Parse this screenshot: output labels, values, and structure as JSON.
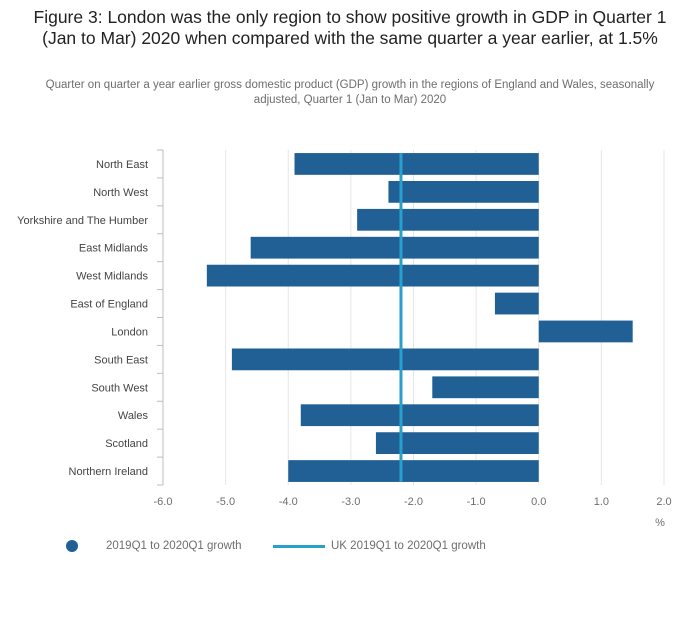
{
  "title": "Figure 3: London was the only region to show positive growth in GDP in Quarter 1 (Jan to Mar) 2020 when compared with the same quarter a year earlier, at 1.5%",
  "subtitle": "Quarter on quarter a year earlier gross domestic product (GDP) growth in the regions of England and Wales, seasonally adjusted, Quarter 1 (Jan to Mar) 2020",
  "colors": {
    "bar": "#206095",
    "reference_line": "#27a0cc",
    "grid": "#e6e6e6",
    "axis": "#bdbdbd"
  },
  "chart_data": {
    "type": "bar",
    "orientation": "horizontal",
    "categories": [
      "North East",
      "North West",
      "Yorkshire and The Humber",
      "East Midlands",
      "West Midlands",
      "East of England",
      "London",
      "South East",
      "South West",
      "Wales",
      "Scotland",
      "Northern Ireland"
    ],
    "series": [
      {
        "name": "2019Q1 to 2020Q1 growth",
        "values": [
          -3.9,
          -2.4,
          -2.9,
          -4.6,
          -5.3,
          -0.7,
          1.5,
          -4.9,
          -1.7,
          -3.8,
          -2.6,
          -4.0
        ]
      }
    ],
    "reference_line": {
      "name": "UK 2019Q1 to 2020Q1 growth",
      "value": -2.2
    },
    "xlim": [
      -6.0,
      2.0
    ],
    "xticks": [
      -6.0,
      -5.0,
      -4.0,
      -3.0,
      -2.0,
      -1.0,
      0.0,
      1.0,
      2.0
    ],
    "xtick_labels": [
      "-6.0",
      "-5.0",
      "-4.0",
      "-3.0",
      "-2.0",
      "-1.0",
      "0.0",
      "1.0",
      "2.0"
    ],
    "xlabel": "%",
    "grid": "vertical",
    "legend_position": "bottom"
  }
}
